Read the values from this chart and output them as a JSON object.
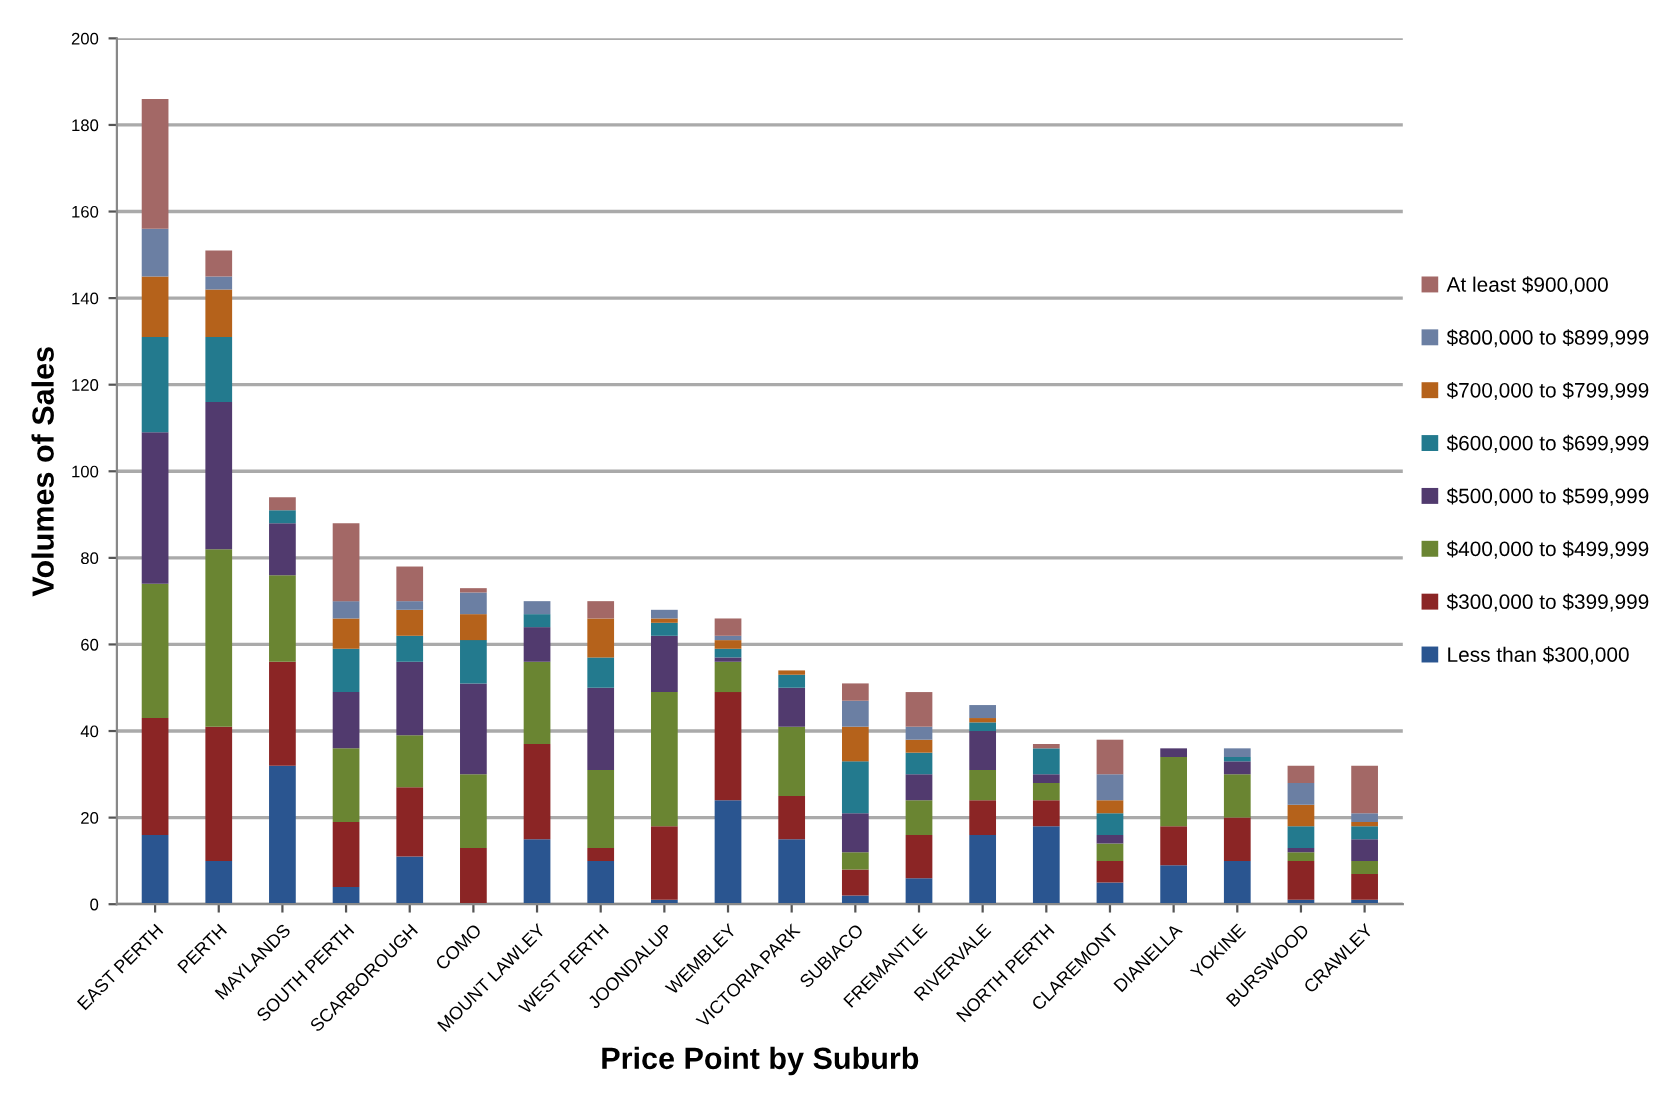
{
  "chart_data": {
    "type": "bar",
    "stacked": true,
    "xlabel": "Price Point by Suburb",
    "ylabel": "Volumes of Sales",
    "categories": [
      "EAST PERTH",
      "PERTH",
      "MAYLANDS",
      "SOUTH PERTH",
      "SCARBOROUGH",
      "COMO",
      "MOUNT LAWLEY",
      "WEST PERTH",
      "JOONDALUP",
      "WEMBLEY",
      "VICTORIA PARK",
      "SUBIACO",
      "FREMANTLE",
      "RIVERVALE",
      "NORTH PERTH",
      "CLAREMONT",
      "DIANELLA",
      "YOKINE",
      "BURSWOOD",
      "CRAWLEY"
    ],
    "series": [
      {
        "name": "Less than $300,000",
        "color": "#2a5590",
        "values": [
          16,
          10,
          32,
          4,
          11,
          0,
          15,
          10,
          1,
          24,
          15,
          2,
          6,
          16,
          18,
          5,
          9,
          10,
          1,
          1
        ]
      },
      {
        "name": "$300,000 to $399,999",
        "color": "#8b2525",
        "values": [
          27,
          31,
          24,
          15,
          16,
          13,
          22,
          3,
          17,
          25,
          10,
          6,
          10,
          8,
          6,
          5,
          9,
          10,
          9,
          6
        ]
      },
      {
        "name": "$400,000 to $499,999",
        "color": "#6a8532",
        "values": [
          31,
          41,
          20,
          17,
          12,
          17,
          19,
          18,
          31,
          7,
          16,
          4,
          8,
          7,
          4,
          4,
          16,
          10,
          2,
          3
        ]
      },
      {
        "name": "$500,000 to $599,999",
        "color": "#513a6e",
        "values": [
          35,
          34,
          12,
          13,
          17,
          21,
          8,
          19,
          13,
          1,
          9,
          9,
          6,
          9,
          2,
          2,
          2,
          3,
          1,
          5
        ]
      },
      {
        "name": "$600,000 to $699,999",
        "color": "#237a8e",
        "values": [
          22,
          15,
          3,
          10,
          6,
          10,
          3,
          7,
          3,
          2,
          3,
          12,
          5,
          2,
          6,
          5,
          0,
          1,
          5,
          3
        ]
      },
      {
        "name": "$700,000 to $799,999",
        "color": "#b5621b",
        "values": [
          14,
          11,
          0,
          7,
          6,
          6,
          0,
          9,
          1,
          2,
          1,
          8,
          3,
          1,
          0,
          3,
          0,
          0,
          5,
          1
        ]
      },
      {
        "name": "$800,000 to $899,999",
        "color": "#6b7fa3",
        "values": [
          11,
          3,
          0,
          4,
          2,
          5,
          3,
          0,
          2,
          1,
          0,
          6,
          3,
          3,
          0,
          6,
          0,
          2,
          5,
          2
        ]
      },
      {
        "name": "At least $900,000",
        "color": "#a36866",
        "values": [
          30,
          6,
          3,
          18,
          8,
          1,
          0,
          4,
          0,
          4,
          0,
          4,
          8,
          0,
          1,
          8,
          0,
          0,
          4,
          11
        ]
      }
    ],
    "ylim": [
      0,
      200
    ],
    "yticks": [
      0,
      20,
      40,
      60,
      80,
      100,
      120,
      140,
      160,
      180,
      200
    ],
    "grid": "y",
    "legend": "right"
  }
}
